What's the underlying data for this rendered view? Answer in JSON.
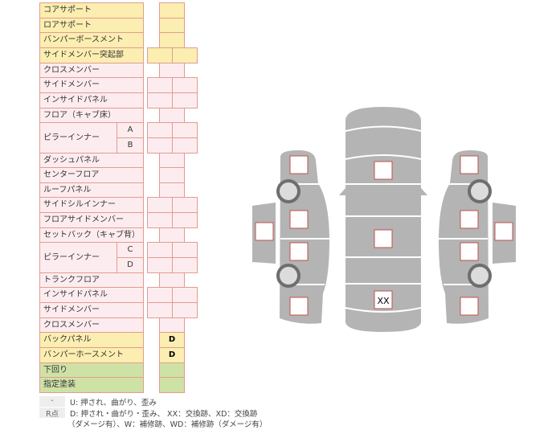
{
  "colors": {
    "yellow": "#fbeeb0",
    "pink": "#fdecef",
    "green": "#cfe2a6",
    "border": "#e29c90",
    "car": "#b4b4b4",
    "mark": "#c0504d"
  },
  "rows": [
    {
      "label": "コアサポート",
      "cells": "single",
      "color": "yellow",
      "values": [
        ""
      ]
    },
    {
      "label": "ロアサポート",
      "cells": "single",
      "color": "yellow",
      "values": [
        ""
      ]
    },
    {
      "label": "バンパーボースメント",
      "cells": "single",
      "color": "yellow",
      "values": [
        ""
      ]
    },
    {
      "label": "サイドメンバー突起部",
      "cells": "double",
      "color": "yellow",
      "values": [
        "",
        ""
      ]
    },
    {
      "label": "クロスメンバー",
      "cells": "single",
      "color": "pink",
      "values": [
        ""
      ]
    },
    {
      "label": "サイドメンバー",
      "cells": "double",
      "color": "pink",
      "values": [
        "",
        ""
      ]
    },
    {
      "label": "インサイドパネル",
      "cells": "double",
      "color": "pink",
      "values": [
        "",
        ""
      ]
    },
    {
      "label": "フロア（キャブ床）",
      "cells": "single",
      "color": "pink",
      "values": [
        ""
      ]
    },
    {
      "label": "ピラーインナー",
      "sub": "A",
      "span": 2,
      "cells": "double",
      "color": "pink",
      "values": [
        "",
        ""
      ]
    },
    {
      "sub": "B",
      "cells": "double",
      "color": "pink",
      "values": [
        "",
        ""
      ]
    },
    {
      "label": "ダッシュパネル",
      "cells": "single",
      "color": "pink",
      "values": [
        ""
      ]
    },
    {
      "label": "センターフロア",
      "cells": "single",
      "color": "pink",
      "values": [
        ""
      ]
    },
    {
      "label": "ルーフパネル",
      "cells": "single",
      "color": "pink",
      "values": [
        ""
      ]
    },
    {
      "label": "サイドシルインナー",
      "cells": "double",
      "color": "pink",
      "values": [
        "",
        ""
      ]
    },
    {
      "label": "フロアサイドメンバー",
      "cells": "double",
      "color": "pink",
      "values": [
        "",
        ""
      ]
    },
    {
      "label": "セットバック（キャブ背）",
      "cells": "single",
      "color": "pink",
      "values": [
        ""
      ]
    },
    {
      "label": "ピラーインナー",
      "sub": "C",
      "span": 2,
      "cells": "double",
      "color": "pink",
      "values": [
        "",
        ""
      ]
    },
    {
      "sub": "D",
      "cells": "double",
      "color": "pink",
      "values": [
        "",
        ""
      ]
    },
    {
      "label": "トランクフロア",
      "cells": "single",
      "color": "pink",
      "values": [
        ""
      ]
    },
    {
      "label": "インサイドパネル",
      "cells": "double",
      "color": "pink",
      "values": [
        "",
        ""
      ]
    },
    {
      "label": "サイドメンバー",
      "cells": "double",
      "color": "pink",
      "values": [
        "",
        ""
      ]
    },
    {
      "label": "クロスメンバー",
      "cells": "single",
      "color": "pink",
      "values": [
        ""
      ]
    },
    {
      "label": "バックパネル",
      "cells": "single",
      "color": "yellow",
      "values": [
        "D"
      ]
    },
    {
      "label": "バンパーホースメント",
      "cells": "single",
      "color": "yellow",
      "values": [
        "D"
      ]
    },
    {
      "label": "下回り",
      "cells": "single",
      "color": "green",
      "values": [
        ""
      ]
    },
    {
      "label": "指定塗装",
      "cells": "single",
      "color": "green",
      "values": [
        ""
      ]
    }
  ],
  "diagram_marks": [
    {
      "part": "left-front",
      "value": ""
    },
    {
      "part": "left-front-door",
      "value": ""
    },
    {
      "part": "left-rear-door",
      "value": ""
    },
    {
      "part": "left-rear",
      "value": ""
    },
    {
      "part": "left-side",
      "value": ""
    },
    {
      "part": "hood",
      "value": ""
    },
    {
      "part": "roof",
      "value": ""
    },
    {
      "part": "trunk",
      "value": "XX"
    },
    {
      "part": "right-front",
      "value": ""
    },
    {
      "part": "right-front-door",
      "value": ""
    },
    {
      "part": "right-rear-door",
      "value": ""
    },
    {
      "part": "right-rear",
      "value": ""
    },
    {
      "part": "right-side",
      "value": ""
    }
  ],
  "legend": [
    {
      "key": "-",
      "text": "U: 押され、曲がり、歪み"
    },
    {
      "key": "R点",
      "text": "D: 押され・曲がり・歪み、 XX：交換跡、XD：交換跡",
      "text2": "（ダメージ有）、W：補修跡、WD：補修跡（ダメージ有）"
    }
  ]
}
